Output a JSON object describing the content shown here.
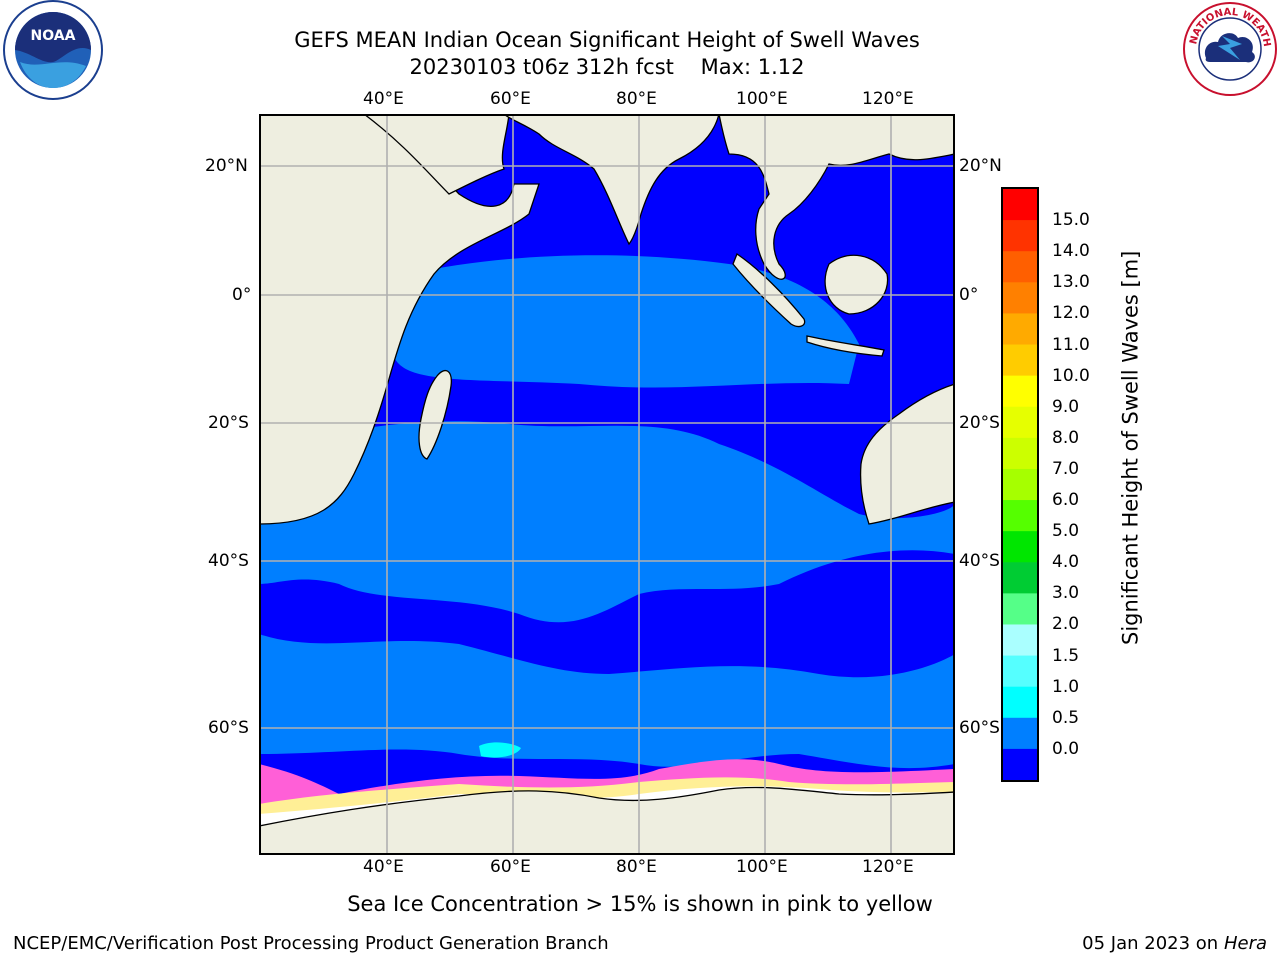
{
  "title": {
    "line1": "GEFS MEAN Indian Ocean Significant Height of Swell Waves",
    "line2": "20230103 t06z 312h fcst    Max: 1.12"
  },
  "map": {
    "lon_labels": [
      "40°E",
      "60°E",
      "80°E",
      "100°E",
      "120°E"
    ],
    "lat_labels": [
      "20°N",
      "0°",
      "20°S",
      "40°S",
      "60°S"
    ],
    "colors": {
      "land": "#eeeee0",
      "ocean_low": "#0000ff",
      "ocean_mid": "#007fff",
      "ocean_high": "#00ffff",
      "sea_ice_pink": "#ff5fd7",
      "sea_ice_yellow": "#ffff8f",
      "grid": "#b0b0b0"
    }
  },
  "colorbar": {
    "title": "Significant Height of Swell Waves [m]",
    "ticks": [
      "15.0",
      "14.0",
      "13.0",
      "12.0",
      "11.0",
      "10.0",
      "9.0",
      "8.0",
      "7.0",
      "6.0",
      "5.0",
      "4.0",
      "3.0",
      "2.0",
      "1.5",
      "1.0",
      "0.5",
      "0.0"
    ],
    "colors": [
      "#ff0000",
      "#ff3300",
      "#ff5f00",
      "#ff8000",
      "#ffaa00",
      "#ffcc00",
      "#ffff00",
      "#e6ff00",
      "#ccff00",
      "#a6ff00",
      "#55ff00",
      "#00e600",
      "#00cc33",
      "#55ff88",
      "#aaffff",
      "#55ffff",
      "#00ffff",
      "#007fff",
      "#0000ff"
    ]
  },
  "note": "Sea Ice Concentration > 15% is shown in pink to yellow",
  "footer": {
    "left": "NCEP/EMC/Verification Post Processing Product Generation Branch",
    "right_prefix": "05 Jan 2023 on ",
    "right_host": "Hera"
  },
  "logos": {
    "noaa_text": "NOAA",
    "nws_text": "NATIONAL WEATHER SERVICE"
  }
}
